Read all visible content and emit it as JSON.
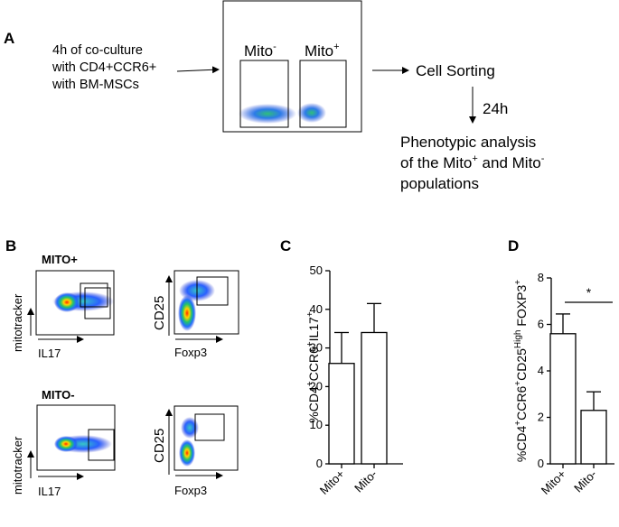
{
  "panel_a": {
    "label": "A",
    "input_text": [
      "4h of co-culture",
      "with CD4+CCR6+",
      "with BM-MSCs"
    ],
    "gate_neg": "Mito",
    "gate_pos": "Mito",
    "sup_neg": "-",
    "sup_pos": "+",
    "sorting": "Cell Sorting",
    "time": "24h",
    "phenotype": [
      "Phenotypic analysis",
      "of the Mito",
      "and Mito",
      "populations"
    ],
    "phenotype_sup": [
      "+",
      "-"
    ]
  },
  "panel_b": {
    "label": "B",
    "mito_pos": "MITO+",
    "mito_neg": "MITO-",
    "mitotracker": "mitotracker",
    "il17": "IL17",
    "cd25": "CD25",
    "foxp3": "Foxp3"
  },
  "chart_data": [
    {
      "type": "bar",
      "label": "C",
      "categories": [
        "Mito+",
        "Mito-"
      ],
      "values": [
        26,
        34
      ],
      "errors": [
        8,
        7.5
      ],
      "ylim": [
        0,
        50
      ],
      "yticks": [
        "0",
        "10",
        "20",
        "30",
        "40",
        "50"
      ],
      "ylabel_parts": [
        "%CD4",
        "+",
        "CCR6",
        "+",
        "IL17",
        "+"
      ]
    },
    {
      "type": "bar",
      "label": "D",
      "categories": [
        "Mito+",
        "Mito-"
      ],
      "values": [
        5.6,
        2.3
      ],
      "errors": [
        0.85,
        0.8
      ],
      "ylim": [
        0,
        8
      ],
      "yticks": [
        "0",
        "2",
        "4",
        "6",
        "8"
      ],
      "ylabel_parts": [
        "%CD4",
        "+",
        "CCR6",
        "+",
        "CD25",
        "High",
        " FOXP3",
        "+"
      ],
      "significance": "*"
    }
  ]
}
